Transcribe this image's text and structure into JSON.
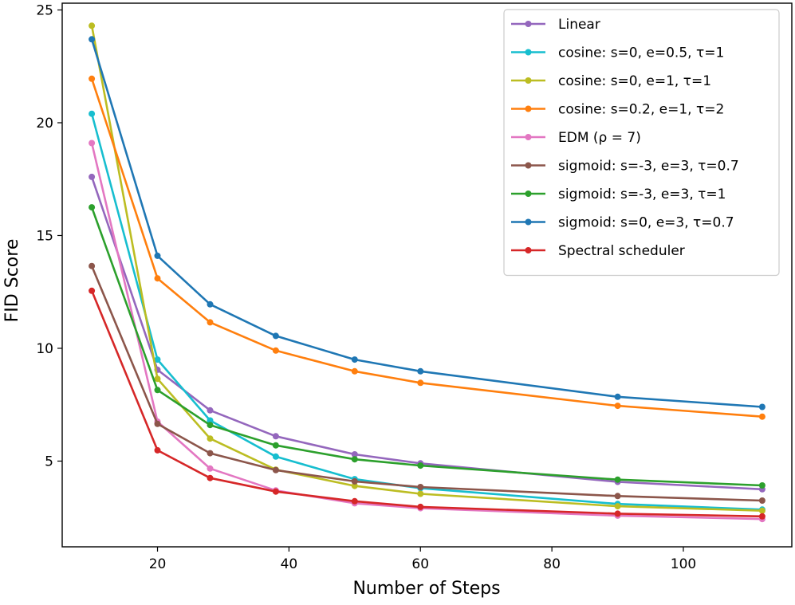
{
  "chart_data": {
    "type": "line",
    "title": "",
    "xlabel": "Number of Steps",
    "ylabel": "FID Score",
    "xlim": [
      5.5,
      116.5
    ],
    "ylim": [
      1.2,
      25.3
    ],
    "xticks": [
      20,
      40,
      60,
      80,
      100
    ],
    "yticks": [
      5,
      10,
      15,
      20,
      25
    ],
    "x": [
      10,
      20,
      28,
      38,
      50,
      60,
      90,
      112
    ],
    "legend_position": "top-right",
    "grid": false,
    "series": [
      {
        "name": "Linear",
        "color": "#9467bd",
        "values": [
          17.6,
          9.05,
          7.25,
          6.1,
          5.3,
          4.9,
          4.08,
          3.75
        ]
      },
      {
        "name": "cosine: s=0, e=0.5, τ=1",
        "color": "#17becf",
        "values": [
          20.4,
          9.5,
          6.8,
          5.2,
          4.2,
          3.8,
          3.1,
          2.85
        ]
      },
      {
        "name": "cosine: s=0, e=1, τ=1",
        "color": "#bcbd22",
        "values": [
          24.3,
          8.65,
          6.0,
          4.62,
          3.9,
          3.55,
          3.0,
          2.8
        ]
      },
      {
        "name": "cosine: s=0.2, e=1, τ=2",
        "color": "#ff7f0e",
        "values": [
          21.95,
          13.1,
          11.15,
          9.9,
          8.98,
          8.47,
          7.45,
          6.97
        ]
      },
      {
        "name": "EDM (ρ = 7)",
        "color": "#e377c2",
        "values": [
          19.1,
          6.75,
          4.67,
          3.7,
          3.13,
          2.91,
          2.58,
          2.43
        ]
      },
      {
        "name": "sigmoid: s=-3, e=3, τ=0.7",
        "color": "#8c564b",
        "values": [
          13.65,
          6.65,
          5.35,
          4.6,
          4.1,
          3.85,
          3.45,
          3.25
        ]
      },
      {
        "name": "sigmoid: s=-3, e=3, τ=1",
        "color": "#2ca02c",
        "values": [
          16.25,
          8.15,
          6.6,
          5.7,
          5.08,
          4.8,
          4.18,
          3.92
        ]
      },
      {
        "name": "sigmoid: s=0, e=3, τ=0.7",
        "color": "#1f77b4",
        "values": [
          23.7,
          14.1,
          11.95,
          10.55,
          9.5,
          8.98,
          7.85,
          7.4
        ]
      },
      {
        "name": "Spectral scheduler",
        "color": "#d62728",
        "values": [
          12.55,
          5.48,
          4.25,
          3.65,
          3.22,
          2.97,
          2.67,
          2.55
        ]
      }
    ]
  }
}
